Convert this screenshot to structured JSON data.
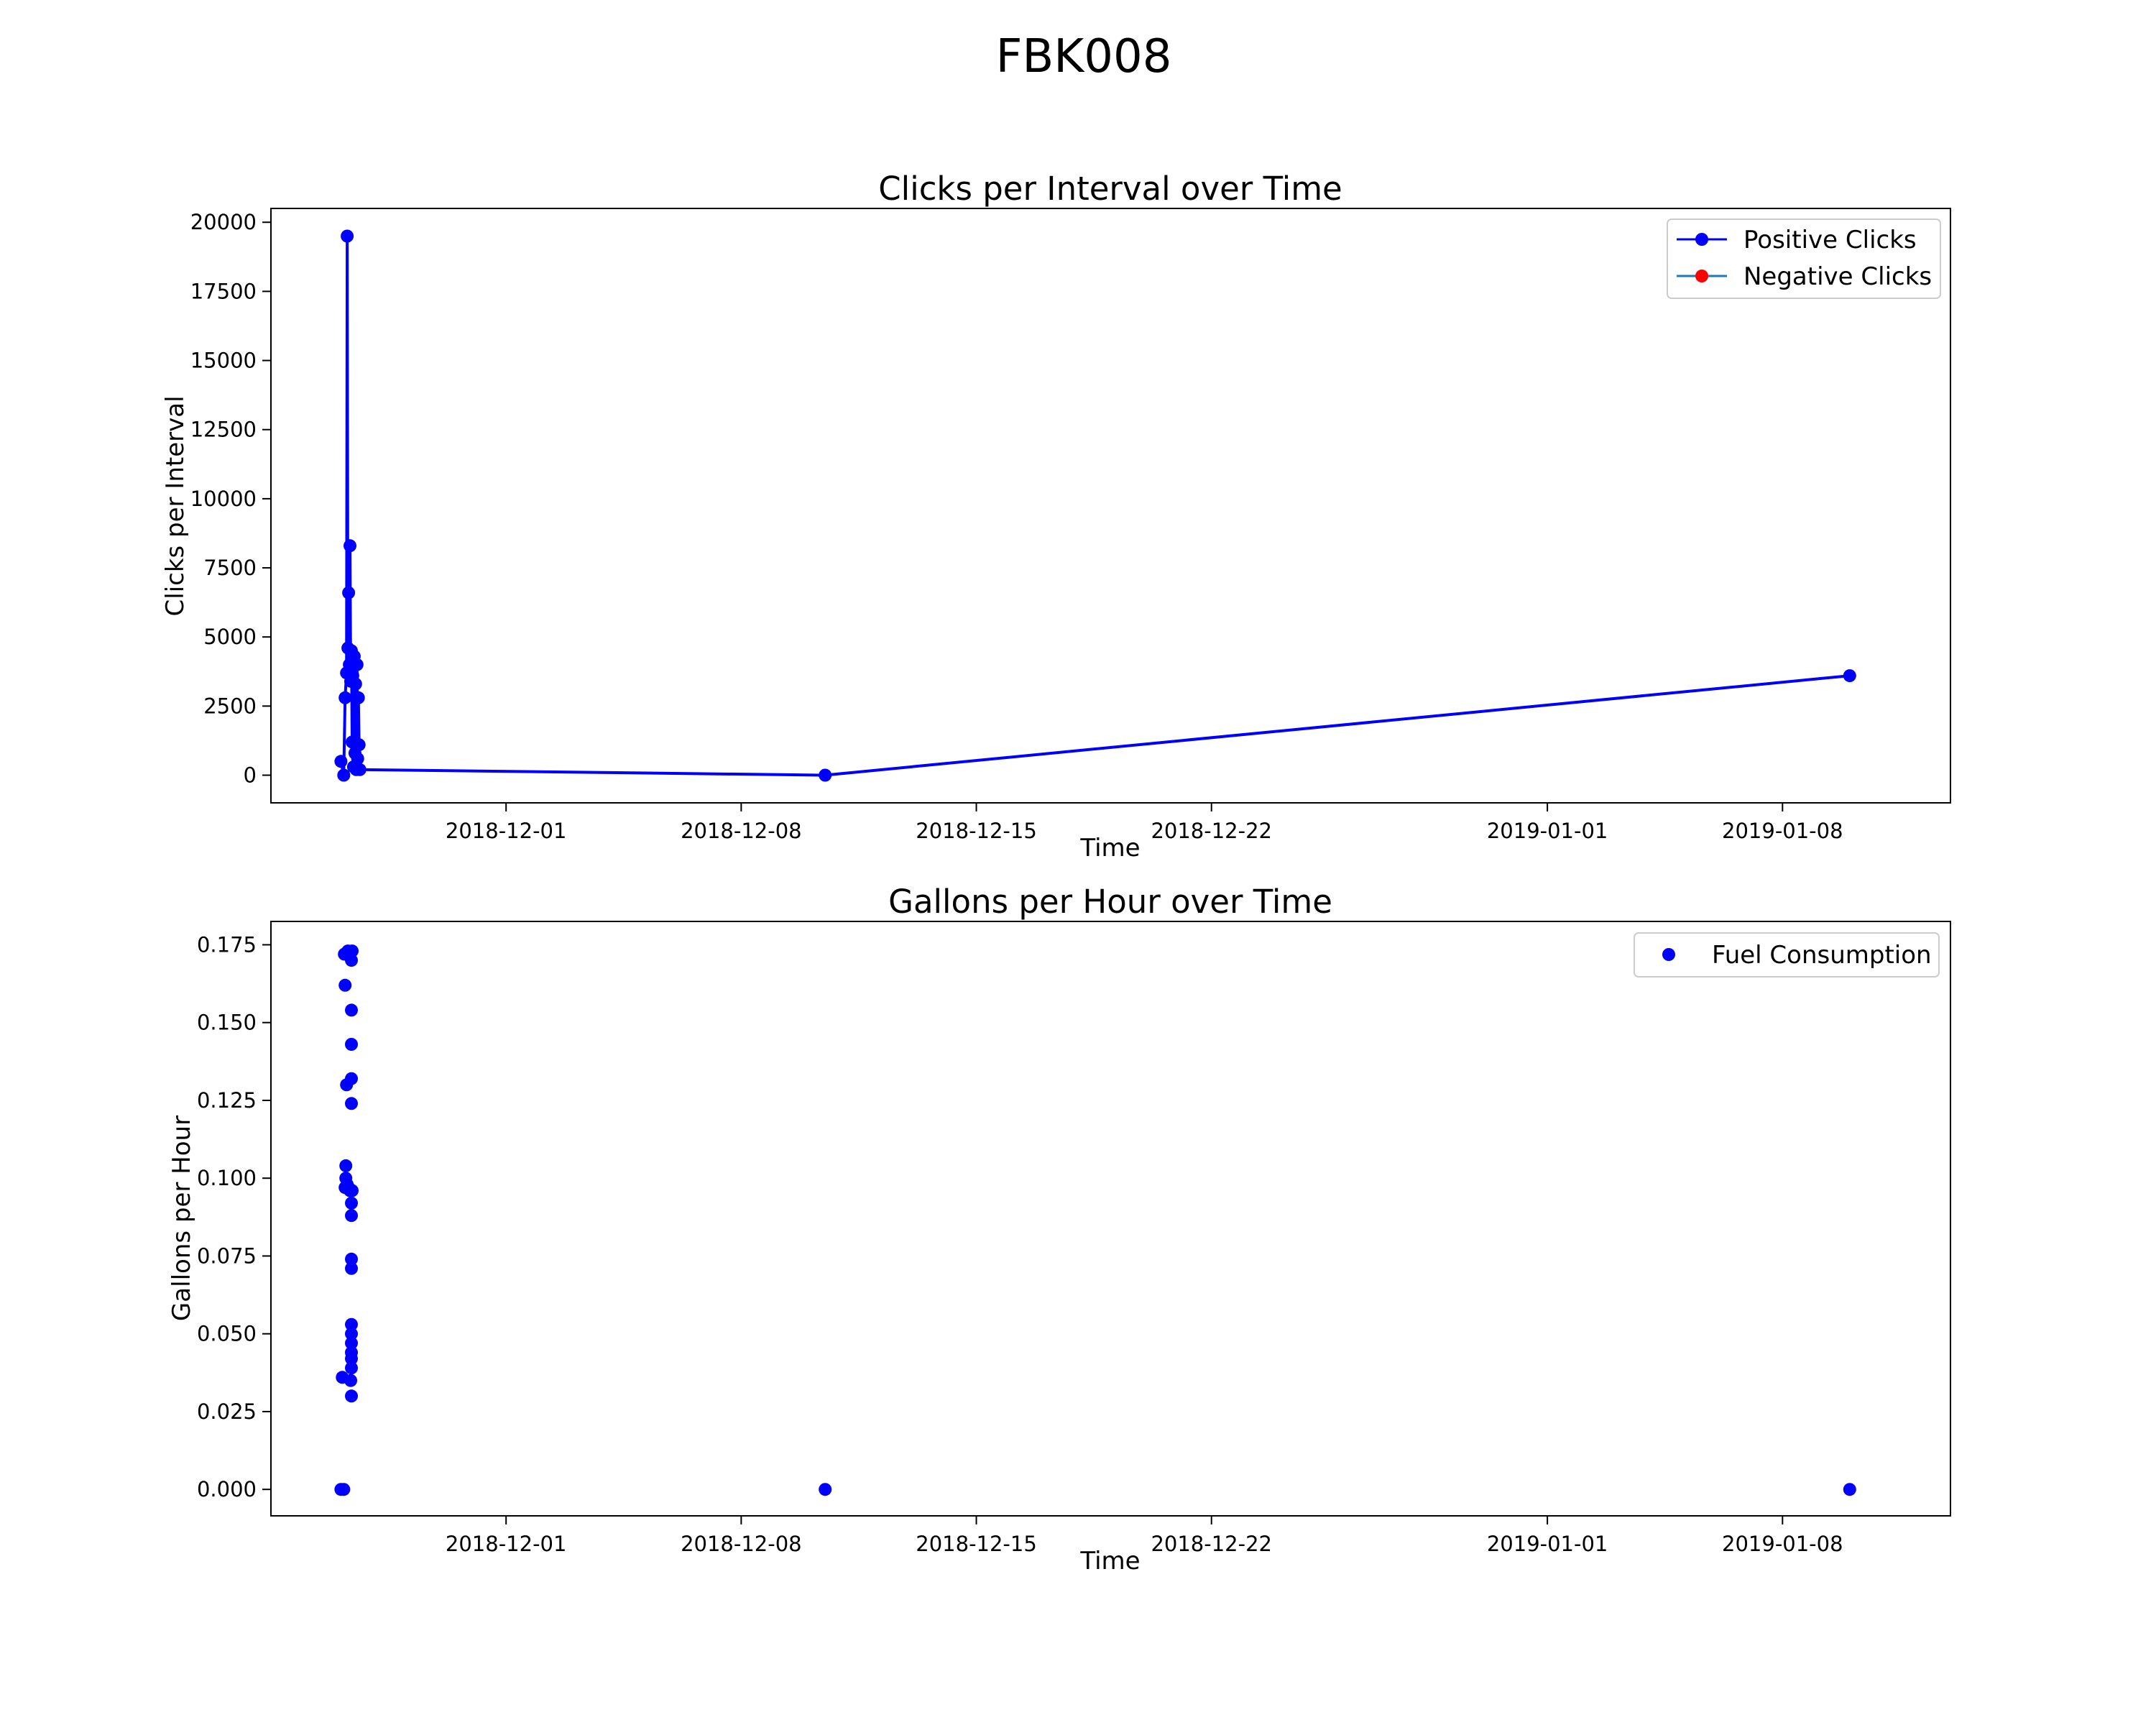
{
  "figure": {
    "title": "FBK008"
  },
  "colors": {
    "series_blue": "#0000ff",
    "negative_red": "#ff0000",
    "legend_line": "#1f77b4"
  },
  "chart_data": [
    {
      "type": "line",
      "title": "Clicks per Interval over Time",
      "xlabel": "Time",
      "ylabel": "Clicks per Interval",
      "x_axis": "date",
      "xlim": [
        "2018-11-24T00:00:00",
        "2019-01-13T00:00:00"
      ],
      "ylim": [
        -1000,
        20500
      ],
      "x_ticks": [
        "2018-12-01",
        "2018-12-08",
        "2018-12-15",
        "2018-12-22",
        "2019-01-01",
        "2019-01-08"
      ],
      "y_ticks": [
        0,
        2500,
        5000,
        7500,
        10000,
        12500,
        15000,
        17500,
        20000
      ],
      "grid": false,
      "legend_position": "top-right",
      "series": [
        {
          "name": "Positive Clicks",
          "color": "#0000ff",
          "marker": "circle",
          "line": true,
          "points": [
            [
              "2018-11-26T02:00:00",
              500
            ],
            [
              "2018-11-26T04:00:00",
              0
            ],
            [
              "2018-11-26T05:00:00",
              2800
            ],
            [
              "2018-11-26T06:00:00",
              3700
            ],
            [
              "2018-11-26T06:30:00",
              19500
            ],
            [
              "2018-11-26T07:00:00",
              4600
            ],
            [
              "2018-11-26T07:30:00",
              6600
            ],
            [
              "2018-11-26T08:00:00",
              4000
            ],
            [
              "2018-11-26T08:30:00",
              8300
            ],
            [
              "2018-11-26T09:00:00",
              3400
            ],
            [
              "2018-11-26T09:30:00",
              4500
            ],
            [
              "2018-11-26T10:00:00",
              1200
            ],
            [
              "2018-11-26T10:30:00",
              3600
            ],
            [
              "2018-11-26T11:00:00",
              300
            ],
            [
              "2018-11-26T11:30:00",
              4300
            ],
            [
              "2018-11-26T12:00:00",
              800
            ],
            [
              "2018-11-26T12:30:00",
              3300
            ],
            [
              "2018-11-26T13:00:00",
              200
            ],
            [
              "2018-11-26T13:30:00",
              4000
            ],
            [
              "2018-11-26T14:00:00",
              600
            ],
            [
              "2018-11-26T14:30:00",
              2800
            ],
            [
              "2018-11-26T15:00:00",
              1100
            ],
            [
              "2018-11-26T15:30:00",
              200
            ],
            [
              "2018-12-10T12:00:00",
              0
            ],
            [
              "2019-01-10T00:00:00",
              3600
            ]
          ]
        },
        {
          "name": "Negative Clicks",
          "color": "#ff0000",
          "marker": "circle",
          "line": true,
          "points": []
        }
      ]
    },
    {
      "type": "scatter",
      "title": "Gallons per Hour over Time",
      "xlabel": "Time",
      "ylabel": "Gallons per Hour",
      "x_axis": "date",
      "xlim": [
        "2018-11-24T00:00:00",
        "2019-01-13T00:00:00"
      ],
      "ylim": [
        -0.0085,
        0.1825
      ],
      "x_ticks": [
        "2018-12-01",
        "2018-12-08",
        "2018-12-15",
        "2018-12-22",
        "2019-01-01",
        "2019-01-08"
      ],
      "y_ticks": [
        "0.000",
        "0.025",
        "0.050",
        "0.075",
        "0.100",
        "0.125",
        "0.150",
        "0.175"
      ],
      "grid": false,
      "legend_position": "top-right",
      "series": [
        {
          "name": "Fuel Consumption",
          "color": "#0000ff",
          "marker": "circle",
          "line": false,
          "points": [
            [
              "2018-11-26T02:00:00",
              0.0
            ],
            [
              "2018-11-26T03:00:00",
              0.036
            ],
            [
              "2018-11-26T04:00:00",
              0.0
            ],
            [
              "2018-11-26T04:30:00",
              0.172
            ],
            [
              "2018-11-26T05:00:00",
              0.162
            ],
            [
              "2018-11-26T05:00:00",
              0.097
            ],
            [
              "2018-11-26T05:30:00",
              0.104
            ],
            [
              "2018-11-26T05:30:00",
              0.1
            ],
            [
              "2018-11-26T06:00:00",
              0.172
            ],
            [
              "2018-11-26T06:00:00",
              0.13
            ],
            [
              "2018-11-26T06:30:00",
              0.098
            ],
            [
              "2018-11-26T07:00:00",
              0.173
            ],
            [
              "2018-11-26T07:30:00",
              0.097
            ],
            [
              "2018-11-26T08:00:00",
              0.172
            ],
            [
              "2018-11-26T08:30:00",
              0.096
            ],
            [
              "2018-11-26T09:00:00",
              0.035
            ],
            [
              "2018-11-26T09:30:00",
              0.17
            ],
            [
              "2018-11-26T09:30:00",
              0.154
            ],
            [
              "2018-11-26T09:30:00",
              0.143
            ],
            [
              "2018-11-26T09:30:00",
              0.132
            ],
            [
              "2018-11-26T09:30:00",
              0.124
            ],
            [
              "2018-11-26T09:30:00",
              0.092
            ],
            [
              "2018-11-26T09:30:00",
              0.088
            ],
            [
              "2018-11-26T09:30:00",
              0.074
            ],
            [
              "2018-11-26T09:30:00",
              0.071
            ],
            [
              "2018-11-26T09:30:00",
              0.053
            ],
            [
              "2018-11-26T09:30:00",
              0.05
            ],
            [
              "2018-11-26T09:30:00",
              0.047
            ],
            [
              "2018-11-26T09:30:00",
              0.044
            ],
            [
              "2018-11-26T09:30:00",
              0.042
            ],
            [
              "2018-11-26T09:30:00",
              0.039
            ],
            [
              "2018-11-26T09:30:00",
              0.03
            ],
            [
              "2018-11-26T10:00:00",
              0.173
            ],
            [
              "2018-11-26T10:00:00",
              0.096
            ],
            [
              "2018-12-10T12:00:00",
              0.0
            ],
            [
              "2019-01-10T00:00:00",
              0.0
            ]
          ]
        }
      ]
    }
  ]
}
